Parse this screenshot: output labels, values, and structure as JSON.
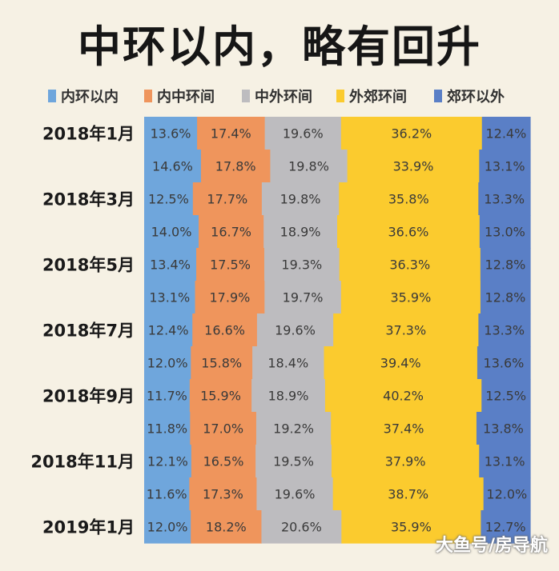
{
  "title": "中环以内，略有回升",
  "watermark": "大鱼号/房导航",
  "chart_data": {
    "type": "bar",
    "orientation": "horizontal-stacked-100",
    "categories": [
      "2018年1月",
      "",
      "2018年3月",
      "",
      "2018年5月",
      "",
      "2018年7月",
      "",
      "2018年9月",
      "",
      "2018年11月",
      "",
      "2019年1月"
    ],
    "series": [
      {
        "name": "内环以内",
        "color": "#6fa6dc",
        "values": [
          13.6,
          14.6,
          12.5,
          14.0,
          13.4,
          13.1,
          12.4,
          12.0,
          11.7,
          11.8,
          12.1,
          11.6,
          12.0
        ]
      },
      {
        "name": "内中环间",
        "color": "#ef955c",
        "values": [
          17.4,
          17.8,
          17.7,
          16.7,
          17.5,
          17.9,
          16.6,
          15.8,
          15.9,
          17.0,
          16.5,
          17.3,
          18.2
        ]
      },
      {
        "name": "中外环间",
        "color": "#bdbcbf",
        "values": [
          19.6,
          19.8,
          19.8,
          18.9,
          19.3,
          19.7,
          19.6,
          18.4,
          18.9,
          19.2,
          19.5,
          19.6,
          20.6
        ]
      },
      {
        "name": "外郊环间",
        "color": "#fbcb2e",
        "values": [
          36.2,
          33.9,
          35.8,
          36.6,
          36.3,
          35.9,
          37.3,
          39.4,
          40.2,
          37.4,
          37.9,
          38.7,
          35.9
        ]
      },
      {
        "name": "郊环以外",
        "color": "#5a7fc6",
        "values": [
          12.4,
          13.1,
          13.3,
          13.0,
          12.8,
          12.8,
          13.3,
          13.6,
          12.5,
          13.8,
          13.1,
          12.0,
          12.7
        ]
      }
    ],
    "xlabel": "",
    "ylabel": "",
    "legend": "top",
    "value_format": "{v}%"
  }
}
